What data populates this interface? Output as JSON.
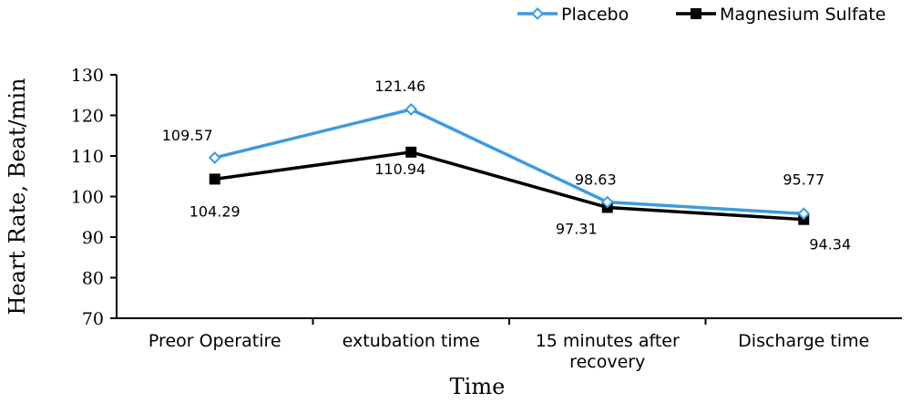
{
  "chart_data": {
    "type": "line",
    "title": "",
    "xlabel": "Time",
    "ylabel": "Heart Rate, Beat/min",
    "ylim": [
      70,
      130
    ],
    "yticks": [
      70,
      80,
      90,
      100,
      110,
      120,
      130
    ],
    "categories": [
      [
        "Preor Operatire"
      ],
      [
        "extubation time"
      ],
      [
        "15 minutes after",
        "recovery"
      ],
      [
        "Discharge time"
      ]
    ],
    "series": [
      {
        "name": "Placebo",
        "color": "#3C9BE0",
        "marker": "diamond-open",
        "values": [
          109.57,
          121.46,
          98.63,
          95.77
        ],
        "labels": [
          "109.57",
          "121.46",
          "98.63",
          "95.77"
        ]
      },
      {
        "name": "Magnesium Sulfate",
        "color": "#000000",
        "marker": "square-filled",
        "values": [
          104.29,
          110.94,
          97.31,
          94.34
        ],
        "labels": [
          "104.29",
          "110.94",
          "97.31",
          "94.34"
        ]
      }
    ],
    "legend_position": "top-right",
    "grid": false
  }
}
